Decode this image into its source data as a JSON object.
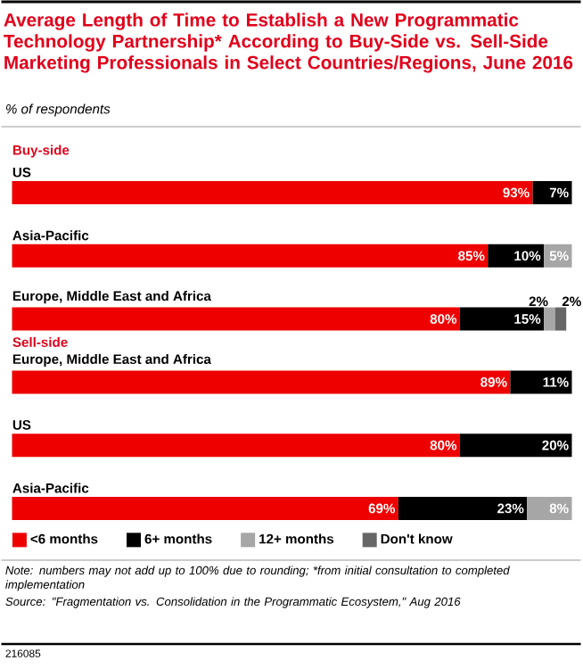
{
  "chart_data": {
    "type": "bar",
    "orientation": "horizontal",
    "stacked": true,
    "title": "Average Length of Time to Establish a New Programmatic Technology Partnership* According to Buy-Side vs. Sell-Side Marketing Professionals in Select Countries/Regions, June 2016",
    "subtitle": "% of respondents",
    "categories": [
      "US",
      "Asia-Pacific",
      "Europe, Middle East and Africa",
      "Europe, Middle East and Africa",
      "US",
      "Asia-Pacific"
    ],
    "series": [
      {
        "name": "<6 months",
        "color": "#ee0000",
        "values": [
          93,
          85,
          80,
          89,
          80,
          69
        ],
        "value_labels": [
          "93%",
          "85%",
          "80%",
          "89%",
          "80%",
          "69%"
        ]
      },
      {
        "name": "6+ months",
        "color": "#000000",
        "values": [
          7,
          10,
          15,
          11,
          20,
          23
        ],
        "value_labels": [
          "7%",
          "10%",
          "15%",
          "11%",
          "20%",
          "23%"
        ]
      },
      {
        "name": "12+ months",
        "color": "#a6a6a6",
        "values": [
          null,
          5,
          2,
          null,
          null,
          8
        ],
        "value_labels": [
          null,
          "5%",
          "2%",
          null,
          null,
          "8%"
        ]
      },
      {
        "name": "Don't know",
        "color": "#666666",
        "values": [
          null,
          null,
          2,
          null,
          null,
          null
        ],
        "value_labels": [
          null,
          null,
          "2%",
          null,
          null,
          null
        ]
      }
    ],
    "legend": "bottom",
    "annotations": [
      "Buy-side",
      "Sell-side",
      "Note: numbers may not add up to 100% due to rounding; *from initial consultation to completed implementation",
      "Source: \"Fragmentation vs. Consolidation in the Programmatic Ecosystem,\" Aug 2016",
      "216085"
    ]
  }
}
